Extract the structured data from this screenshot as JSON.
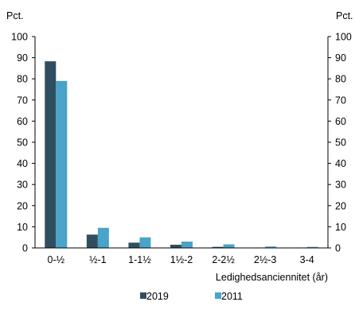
{
  "chart_data": {
    "type": "bar",
    "categories": [
      "0-½",
      "½-1",
      "1-1½",
      "1½-2",
      "2-2½",
      "2½-3",
      "3-4"
    ],
    "series": [
      {
        "name": "2019",
        "values": [
          88.3,
          6.3,
          2.5,
          1.5,
          0.5,
          0.2,
          0.2
        ],
        "color": "#2f4f60"
      },
      {
        "name": "2011",
        "values": [
          79.0,
          9.5,
          5.0,
          3.0,
          1.7,
          0.7,
          0.5
        ],
        "color": "#4aa3c9"
      }
    ],
    "ylim": [
      0,
      100
    ],
    "yticks": [
      0,
      10,
      20,
      30,
      40,
      50,
      60,
      70,
      80,
      90,
      100
    ],
    "ylabel_left": "Pct.",
    "ylabel_right": "Pct.",
    "xlabel": "Ledighedsanciennitet (år)",
    "legend_position": "bottom-center",
    "grid": false
  }
}
